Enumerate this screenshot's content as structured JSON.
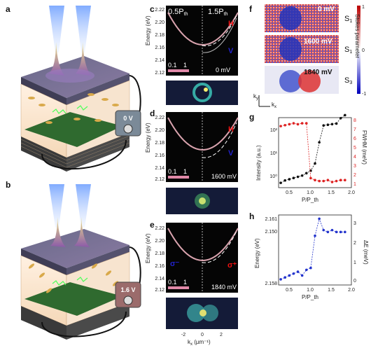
{
  "panel_labels": {
    "a": "a",
    "b": "b",
    "c": "c",
    "d": "d",
    "e": "e",
    "f": "f",
    "g": "g",
    "h": "h"
  },
  "schematic": {
    "a_voltage": "0 V",
    "b_voltage": "1.6 V"
  },
  "spectra": {
    "left_header": "0.5P",
    "left_header_sub": "th",
    "right_header": "1.5P",
    "right_header_sub": "th",
    "y_axis_label": "Energy (eV)",
    "y_ticks": [
      "2.22",
      "2.20",
      "2.18",
      "2.16",
      "2.14",
      "2.12"
    ],
    "x_ticks": [
      "-2",
      "0",
      "2"
    ],
    "x_axis_label": "k",
    "x_axis_label_sub": "x",
    "x_axis_unit": " (µm⁻¹)",
    "colorbar_min": "0.1",
    "colorbar_max": "1",
    "realspace_colorbar_min": "0",
    "realspace_colorbar_max": "1",
    "c_voltage": "0 mV",
    "d_voltage": "1600 mV",
    "e_voltage": "1840 mV",
    "H_label": "H",
    "V_label": "V",
    "sigma_minus": "σ⁻",
    "sigma_plus": "σ⁺"
  },
  "stokes": {
    "maps": [
      {
        "voltage": "0 mV",
        "param": "S",
        "param_sub": "1"
      },
      {
        "voltage": "1600 mV",
        "param": "S",
        "param_sub": "1"
      },
      {
        "voltage": "1840 mV",
        "param": "S",
        "param_sub": "3"
      }
    ],
    "colorbar_label": "Stokes parameter",
    "colorbar_ticks": [
      "1",
      "0",
      "-1"
    ],
    "ky_label": "k",
    "ky_sub": "y",
    "kx_label": "k",
    "kx_sub": "x"
  },
  "chart_data": [
    {
      "type": "line",
      "panel": "g",
      "xlabel": "P/P_th",
      "ylabel_left": "Intensity (a.u.)",
      "ylabel_right": "FWHM (meV)",
      "x_ticks": [
        "0.5",
        "1.0",
        "1.5",
        "2.0"
      ],
      "y_left_ticks": [
        "10²",
        "10¹",
        "10⁰"
      ],
      "y_right_ticks": [
        "8",
        "7",
        "6",
        "5",
        "4",
        "3",
        "2",
        "1"
      ],
      "xlim": [
        0.3,
        2.0
      ],
      "y_left_log_range": [
        -0.4,
        2.5
      ],
      "y_right_range": [
        0.8,
        8.2
      ],
      "series": [
        {
          "axis": "left",
          "color": "#111111",
          "x": [
            0.35,
            0.45,
            0.55,
            0.65,
            0.75,
            0.85,
            0.95,
            1.05,
            1.15,
            1.25,
            1.35,
            1.45,
            1.55,
            1.65,
            1.75,
            1.85
          ],
          "y": [
            0.63,
            0.79,
            0.89,
            1.0,
            1.12,
            1.26,
            1.58,
            2.0,
            4.0,
            30,
            150,
            160,
            170,
            180,
            300,
            400
          ]
        },
        {
          "axis": "right",
          "color": "#dd2222",
          "x": [
            0.35,
            0.45,
            0.55,
            0.65,
            0.75,
            0.85,
            0.95,
            1.05,
            1.15,
            1.25,
            1.35,
            1.45,
            1.55,
            1.65,
            1.75,
            1.85
          ],
          "y": [
            7.3,
            7.4,
            7.5,
            7.6,
            7.5,
            7.6,
            7.6,
            1.8,
            1.6,
            1.5,
            1.5,
            1.6,
            1.4,
            1.5,
            1.6,
            1.6
          ]
        }
      ]
    },
    {
      "type": "line",
      "panel": "h",
      "xlabel": "P/P_th",
      "ylabel_left": "Energy (eV)",
      "ylabel_right": "ΔE (meV)",
      "x_ticks": [
        "0.5",
        "1.0",
        "1.5",
        "2.0"
      ],
      "y_left_ticks": [
        "2.161",
        "2.150",
        "2.158"
      ],
      "y_right_ticks": [
        "3",
        "2",
        "1",
        "0"
      ],
      "xlim": [
        0.3,
        2.0
      ],
      "y_right_range": [
        -0.5,
        3.2
      ],
      "series": [
        {
          "axis": "right",
          "color": "#2233cc",
          "x": [
            0.35,
            0.45,
            0.55,
            0.65,
            0.75,
            0.85,
            0.95,
            1.05,
            1.15,
            1.25,
            1.35,
            1.45,
            1.55,
            1.65,
            1.75,
            1.85
          ],
          "y": [
            -0.2,
            -0.1,
            0.0,
            0.1,
            0.2,
            0.0,
            0.3,
            0.4,
            2.1,
            3.0,
            2.4,
            2.3,
            2.4,
            2.3,
            2.3,
            2.3
          ]
        }
      ]
    }
  ]
}
